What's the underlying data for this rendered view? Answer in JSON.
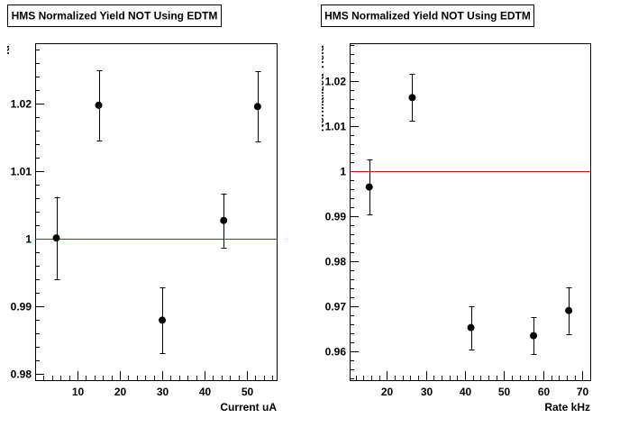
{
  "chart_data": [
    {
      "type": "scatter",
      "title": "HMS Normalized Yield NOT Using EDTM",
      "xlabel": "Current uA",
      "ylabel": "Normalized Yield",
      "xlim": [
        0,
        57
      ],
      "ylim": [
        0.979,
        1.029
      ],
      "xticks": [
        10,
        20,
        30,
        40,
        50
      ],
      "xticks_minor_step": 2,
      "yticks": [
        0.98,
        0.99,
        1,
        1.01,
        1.02
      ],
      "yticks_minor_step": 0.002,
      "xtick_labels": [
        "10",
        "20",
        "30",
        "40",
        "50"
      ],
      "ytick_labels": [
        "0.98",
        "0.99",
        "1",
        "1.01",
        "1.02"
      ],
      "grid": false,
      "reference_line": {
        "y": 1.0,
        "color": "#dd0000"
      },
      "marker_color": "#000000",
      "series": [
        {
          "x": [
            5,
            15,
            30,
            44.5,
            52.5
          ],
          "y": [
            1.0001,
            1.0198,
            0.9879,
            1.0027,
            1.0196
          ],
          "yerr": [
            0.0061,
            0.0052,
            0.0049,
            0.004,
            0.0052
          ]
        }
      ]
    },
    {
      "type": "scatter",
      "title": "HMS Normalized Yield NOT Using EDTM",
      "xlabel": "Rate kHz",
      "ylabel": "Normalized Yield",
      "xlim": [
        10.5,
        72
      ],
      "ylim": [
        0.9535,
        1.0285
      ],
      "xticks": [
        20,
        30,
        40,
        50,
        60,
        70
      ],
      "xticks_minor_step": 2,
      "yticks": [
        0.96,
        0.97,
        0.98,
        0.99,
        1,
        1.01,
        1.02
      ],
      "yticks_minor_step": 0.002,
      "xtick_labels": [
        "20",
        "30",
        "40",
        "50",
        "60",
        "70"
      ],
      "ytick_labels": [
        "0.96",
        "0.97",
        "0.98",
        "0.99",
        "1",
        "1.01",
        "1.02"
      ],
      "grid": false,
      "reference_line": {
        "y": 1.0,
        "color": "#dd0000"
      },
      "marker_color": "#000000",
      "series": [
        {
          "x": [
            15.5,
            26.5,
            41.5,
            57.5,
            66.5
          ],
          "y": [
            0.9965,
            1.0164,
            0.9652,
            0.9634,
            0.969
          ],
          "yerr": [
            0.0062,
            0.0052,
            0.0048,
            0.0041,
            0.0052
          ]
        }
      ]
    }
  ]
}
